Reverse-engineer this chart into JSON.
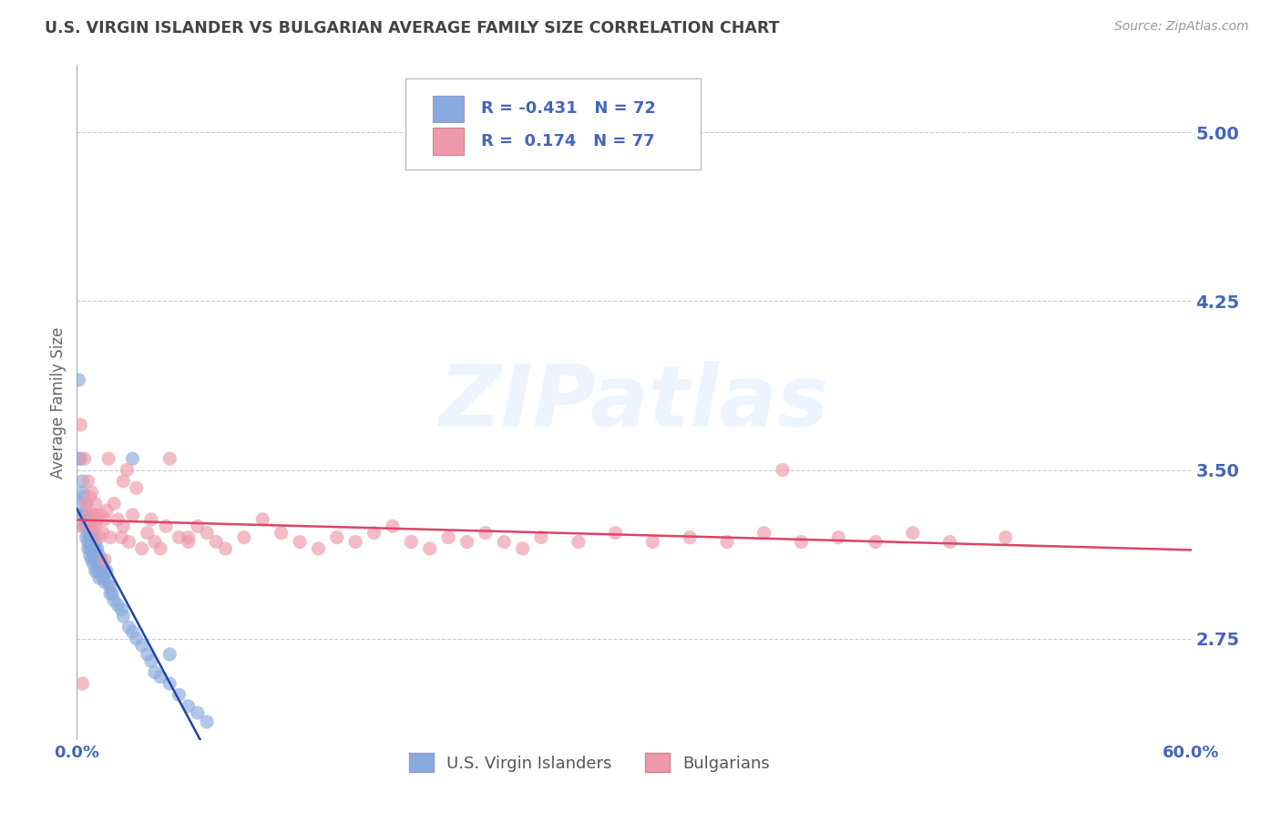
{
  "title": "U.S. VIRGIN ISLANDER VS BULGARIAN AVERAGE FAMILY SIZE CORRELATION CHART",
  "source_text": "Source: ZipAtlas.com",
  "ylabel": "Average Family Size",
  "y_tick_values": [
    2.75,
    3.5,
    4.25,
    5.0
  ],
  "ylim": [
    2.3,
    5.3
  ],
  "xlim": [
    0.0,
    0.6
  ],
  "x_tick_labels": [
    "0.0%",
    "60.0%"
  ],
  "x_tick_values": [
    0.0,
    0.6
  ],
  "blue_label": "U.S. Virgin Islanders",
  "pink_label": "Bulgarians",
  "blue_R": -0.431,
  "blue_N": 72,
  "pink_R": 0.174,
  "pink_N": 77,
  "blue_color": "#88AADD",
  "pink_color": "#EE99AA",
  "blue_trend_solid_color": "#2244AA",
  "blue_trend_dashed_color": "#8899CC",
  "pink_trend_color": "#DD4466",
  "watermark": "ZIPatlas",
  "background_color": "#FFFFFF",
  "title_color": "#444444",
  "right_axis_color": "#4466BB",
  "grid_color": "#CCCCCC",
  "blue_scatter_x": [
    0.001,
    0.001,
    0.002,
    0.002,
    0.003,
    0.003,
    0.003,
    0.004,
    0.004,
    0.004,
    0.005,
    0.005,
    0.005,
    0.005,
    0.006,
    0.006,
    0.006,
    0.006,
    0.006,
    0.007,
    0.007,
    0.007,
    0.007,
    0.007,
    0.008,
    0.008,
    0.008,
    0.008,
    0.009,
    0.009,
    0.009,
    0.009,
    0.01,
    0.01,
    0.01,
    0.01,
    0.011,
    0.011,
    0.011,
    0.012,
    0.012,
    0.012,
    0.013,
    0.013,
    0.014,
    0.014,
    0.015,
    0.015,
    0.016,
    0.017,
    0.018,
    0.018,
    0.019,
    0.02,
    0.022,
    0.024,
    0.025,
    0.028,
    0.03,
    0.032,
    0.035,
    0.038,
    0.04,
    0.042,
    0.045,
    0.05,
    0.055,
    0.06,
    0.065,
    0.07,
    0.03,
    0.05
  ],
  "blue_scatter_y": [
    3.9,
    3.55,
    3.55,
    3.35,
    3.45,
    3.4,
    3.3,
    3.38,
    3.3,
    3.25,
    3.35,
    3.3,
    3.25,
    3.2,
    3.3,
    3.25,
    3.22,
    3.18,
    3.15,
    3.28,
    3.22,
    3.18,
    3.15,
    3.12,
    3.22,
    3.18,
    3.15,
    3.1,
    3.2,
    3.15,
    3.12,
    3.08,
    3.18,
    3.15,
    3.1,
    3.05,
    3.15,
    3.1,
    3.05,
    3.12,
    3.08,
    3.02,
    3.1,
    3.05,
    3.08,
    3.02,
    3.05,
    3.0,
    3.05,
    3.0,
    2.98,
    2.95,
    2.95,
    2.92,
    2.9,
    2.88,
    2.85,
    2.8,
    2.78,
    2.75,
    2.72,
    2.68,
    2.65,
    2.6,
    2.58,
    2.55,
    2.5,
    2.45,
    2.42,
    2.38,
    3.55,
    2.68
  ],
  "pink_scatter_x": [
    0.001,
    0.002,
    0.004,
    0.005,
    0.006,
    0.006,
    0.007,
    0.008,
    0.008,
    0.009,
    0.01,
    0.01,
    0.011,
    0.012,
    0.013,
    0.014,
    0.015,
    0.016,
    0.017,
    0.018,
    0.02,
    0.022,
    0.024,
    0.025,
    0.027,
    0.028,
    0.03,
    0.032,
    0.035,
    0.038,
    0.04,
    0.042,
    0.045,
    0.048,
    0.05,
    0.055,
    0.06,
    0.065,
    0.07,
    0.075,
    0.08,
    0.09,
    0.1,
    0.11,
    0.12,
    0.13,
    0.14,
    0.15,
    0.16,
    0.17,
    0.18,
    0.19,
    0.2,
    0.21,
    0.22,
    0.23,
    0.24,
    0.25,
    0.27,
    0.29,
    0.31,
    0.33,
    0.35,
    0.37,
    0.39,
    0.41,
    0.43,
    0.45,
    0.47,
    0.5,
    0.38,
    0.01,
    0.003,
    0.008,
    0.015,
    0.025,
    0.06
  ],
  "pink_scatter_y": [
    3.25,
    3.7,
    3.55,
    3.35,
    3.45,
    3.3,
    3.38,
    3.4,
    3.25,
    3.3,
    3.35,
    3.25,
    3.28,
    3.2,
    3.3,
    3.22,
    3.28,
    3.32,
    3.55,
    3.2,
    3.35,
    3.28,
    3.2,
    3.25,
    3.5,
    3.18,
    3.3,
    3.42,
    3.15,
    3.22,
    3.28,
    3.18,
    3.15,
    3.25,
    3.55,
    3.2,
    3.18,
    3.25,
    3.22,
    3.18,
    3.15,
    3.2,
    3.28,
    3.22,
    3.18,
    3.15,
    3.2,
    3.18,
    3.22,
    3.25,
    3.18,
    3.15,
    3.2,
    3.18,
    3.22,
    3.18,
    3.15,
    3.2,
    3.18,
    3.22,
    3.18,
    3.2,
    3.18,
    3.22,
    3.18,
    3.2,
    3.18,
    3.22,
    3.18,
    3.2,
    3.5,
    3.3,
    2.55,
    3.25,
    3.1,
    3.45,
    3.2
  ]
}
